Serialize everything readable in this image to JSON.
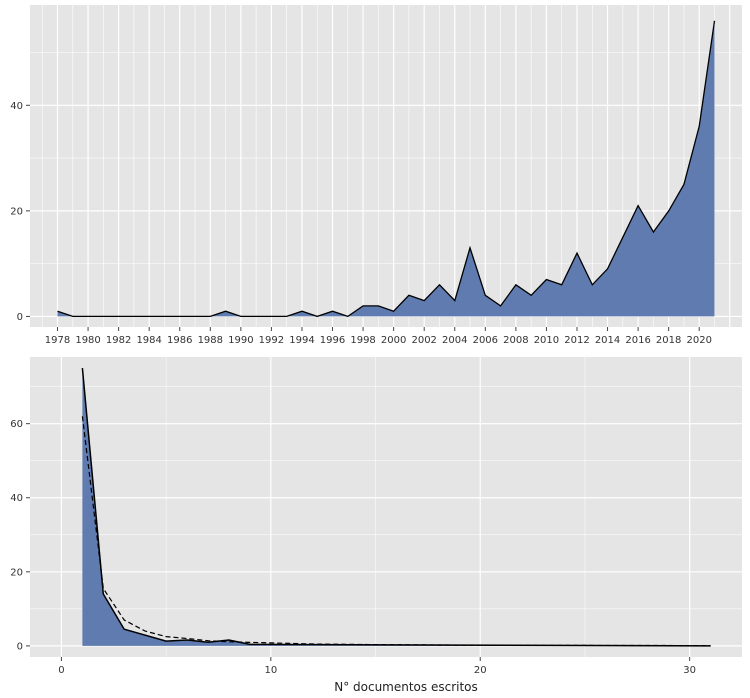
{
  "chart_data": [
    {
      "type": "area",
      "x": [
        1978,
        1979,
        1980,
        1981,
        1982,
        1983,
        1984,
        1985,
        1986,
        1987,
        1988,
        1989,
        1990,
        1991,
        1992,
        1993,
        1994,
        1995,
        1996,
        1997,
        1998,
        1999,
        2000,
        2001,
        2002,
        2003,
        2004,
        2005,
        2006,
        2007,
        2008,
        2009,
        2010,
        2011,
        2012,
        2013,
        2014,
        2015,
        2016,
        2017,
        2018,
        2019,
        2020,
        2021
      ],
      "values": [
        1,
        0,
        0,
        0,
        0,
        0,
        0,
        0,
        0,
        0,
        0,
        1,
        0,
        0,
        0,
        0,
        1,
        0,
        1,
        0,
        2,
        2,
        1,
        4,
        3,
        6,
        3,
        13,
        4,
        2,
        6,
        4,
        7,
        6,
        12,
        6,
        9,
        15,
        21,
        16,
        20,
        25,
        36,
        56
      ],
      "x_ticks": [
        "1978",
        "1980",
        "1982",
        "1984",
        "1986",
        "1988",
        "1990",
        "1992",
        "1994",
        "1996",
        "1998",
        "2000",
        "2002",
        "2004",
        "2006",
        "2008",
        "2010",
        "2012",
        "2014",
        "2016",
        "2018",
        "2020"
      ],
      "y_ticks": [
        "0",
        "20",
        "40"
      ],
      "ylim": [
        -2,
        59
      ],
      "xlim": [
        1976.2,
        2022.8
      ],
      "grid": true,
      "fill_color": "#5f7baf",
      "line_color": "#000000",
      "background": "#e5e5e5",
      "grid_color": "#ffffff"
    },
    {
      "type": "area",
      "xlabel": "N° documentos escritos",
      "observed": {
        "x": [
          1,
          2,
          3,
          5,
          6,
          7,
          8,
          9,
          31
        ],
        "values": [
          75,
          14,
          4.5,
          1.3,
          1.6,
          1.0,
          1.6,
          0.4,
          0
        ]
      },
      "expected": {
        "x": [
          1,
          2,
          3,
          4,
          5,
          6,
          7,
          8,
          10,
          12,
          15,
          19,
          25,
          31
        ],
        "values": [
          62,
          15.5,
          7,
          4,
          2.5,
          2,
          1.4,
          1.1,
          0.8,
          0.5,
          0.35,
          0.2,
          0.12,
          0.08
        ]
      },
      "x_ticks": [
        "0",
        "10",
        "20",
        "30"
      ],
      "y_ticks": [
        "0",
        "20",
        "40",
        "60"
      ],
      "ylim": [
        -3,
        78
      ],
      "xlim": [
        -1.5,
        32.5
      ],
      "grid": true,
      "fill_color": "#5f7baf",
      "line_color": "#000000",
      "background": "#e5e5e5",
      "grid_color": "#ffffff"
    }
  ]
}
